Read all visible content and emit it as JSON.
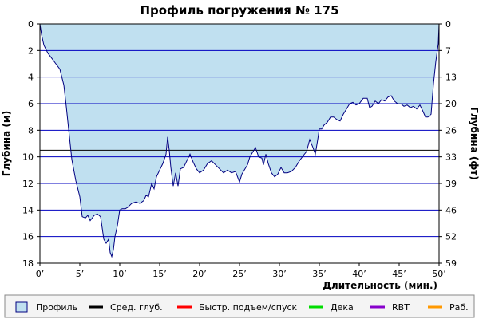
{
  "chart_data": {
    "type": "area",
    "title": "Профиль погружения № 175",
    "xlabel": "Длительность (мин.)",
    "ylabel_left": "Глубина (м)",
    "ylabel_right": "Глубина (фт)",
    "xlim": [
      0,
      50
    ],
    "ylim": [
      0,
      18
    ],
    "y_inverted": true,
    "grid": true,
    "x_ticks": [
      0,
      5,
      10,
      15,
      20,
      25,
      30,
      35,
      40,
      45,
      50
    ],
    "x_tick_labels": [
      "0’",
      "5’",
      "10’",
      "15’",
      "20’",
      "25’",
      "30’",
      "35’",
      "40’",
      "45’",
      "50’"
    ],
    "y_ticks_left": [
      0,
      2,
      4,
      6,
      8,
      10,
      12,
      14,
      16,
      18
    ],
    "y_ticks_right_labels": [
      "0",
      "7",
      "13",
      "20",
      "26",
      "33",
      "39",
      "46",
      "52",
      "59"
    ],
    "average_depth": 9.5,
    "colors": {
      "profile_fill": "#c0e0f0",
      "profile_line": "#000080",
      "grid": "#0000c0",
      "avg_depth": "#000000",
      "fast_ascent": "#ff0000",
      "deco": "#00dd00",
      "rbt": "#8800cc",
      "work": "#ff9900"
    },
    "series": [
      {
        "name": "Профиль",
        "x": [
          0,
          0.2,
          0.5,
          1,
          1.5,
          2,
          2.5,
          3,
          3.3,
          3.7,
          4,
          4.5,
          5,
          5.3,
          5.7,
          6,
          6.3,
          6.8,
          7.2,
          7.6,
          8,
          8.3,
          8.6,
          8.8,
          9,
          9.2,
          9.4,
          9.7,
          10,
          10.3,
          10.7,
          11,
          11.5,
          12,
          12.5,
          13,
          13.3,
          13.6,
          14,
          14.3,
          14.6,
          15,
          15.4,
          15.8,
          16,
          16.2,
          16.4,
          16.7,
          17,
          17.3,
          17.6,
          18,
          18.4,
          18.8,
          19.2,
          19.6,
          20,
          20.5,
          21,
          21.5,
          22,
          22.5,
          23,
          23.5,
          24,
          24.5,
          25,
          25.3,
          25.6,
          26,
          26.3,
          26.7,
          27,
          27.4,
          27.8,
          28,
          28.3,
          28.6,
          29,
          29.4,
          29.8,
          30.2,
          30.6,
          31,
          31.5,
          32,
          32.5,
          33,
          33.4,
          33.8,
          34.2,
          34.5,
          34.8,
          35,
          35.3,
          35.6,
          36,
          36.4,
          36.8,
          37.2,
          37.6,
          38,
          38.4,
          38.8,
          39.2,
          39.6,
          40,
          40.5,
          41,
          41.3,
          41.6,
          42,
          42.4,
          42.8,
          43.2,
          43.6,
          44,
          44.4,
          44.8,
          45.2,
          45.6,
          46,
          46.4,
          46.8,
          47.2,
          47.6,
          48,
          48.3,
          48.6,
          49,
          49.3,
          49.6,
          49.9,
          50
        ],
        "y": [
          0,
          0.8,
          1.6,
          2.2,
          2.6,
          3,
          3.4,
          4.6,
          6.2,
          8.5,
          10.2,
          11.8,
          13,
          14.5,
          14.6,
          14.4,
          14.8,
          14.4,
          14.3,
          14.5,
          16.2,
          16.5,
          16.2,
          17.2,
          17.5,
          17.0,
          16.0,
          15.2,
          14.0,
          13.9,
          13.9,
          13.8,
          13.5,
          13.4,
          13.5,
          13.3,
          12.9,
          13.0,
          12.0,
          12.4,
          11.5,
          11.0,
          10.5,
          9.8,
          8.5,
          9.5,
          10.8,
          12.2,
          11.2,
          12.2,
          10.9,
          10.8,
          10.3,
          9.8,
          10.4,
          10.9,
          11.2,
          11.0,
          10.5,
          10.3,
          10.6,
          10.9,
          11.2,
          11.0,
          11.2,
          11.1,
          11.9,
          11.3,
          11.0,
          10.6,
          10.0,
          9.6,
          9.3,
          10.0,
          10.1,
          10.6,
          9.8,
          10.5,
          11.2,
          11.5,
          11.3,
          10.8,
          11.2,
          11.2,
          11.1,
          10.8,
          10.3,
          9.9,
          9.6,
          8.7,
          9.3,
          9.8,
          8.7,
          7.9,
          7.9,
          7.6,
          7.4,
          7.0,
          7.0,
          7.2,
          7.3,
          6.8,
          6.4,
          6.0,
          5.9,
          6.1,
          6.0,
          5.6,
          5.6,
          6.3,
          6.2,
          5.8,
          6.0,
          5.7,
          5.8,
          5.5,
          5.4,
          5.8,
          6.0,
          6.0,
          6.2,
          6.1,
          6.3,
          6.2,
          6.4,
          6.1,
          6.6,
          7.0,
          7.0,
          6.8,
          4.5,
          2.8,
          1.5,
          0
        ]
      }
    ]
  },
  "legend": {
    "items": [
      {
        "label": "Профиль",
        "color": "#c0e0f0",
        "kind": "swatch"
      },
      {
        "label": "Сред. глуб.",
        "color": "#000000",
        "kind": "line"
      },
      {
        "label": "Быстр. подъем/спуск",
        "color": "#ff0000",
        "kind": "line"
      },
      {
        "label": "Дека",
        "color": "#00dd00",
        "kind": "line"
      },
      {
        "label": "RBT",
        "color": "#8800cc",
        "kind": "line"
      },
      {
        "label": "Раб.",
        "color": "#ff9900",
        "kind": "line"
      }
    ]
  }
}
